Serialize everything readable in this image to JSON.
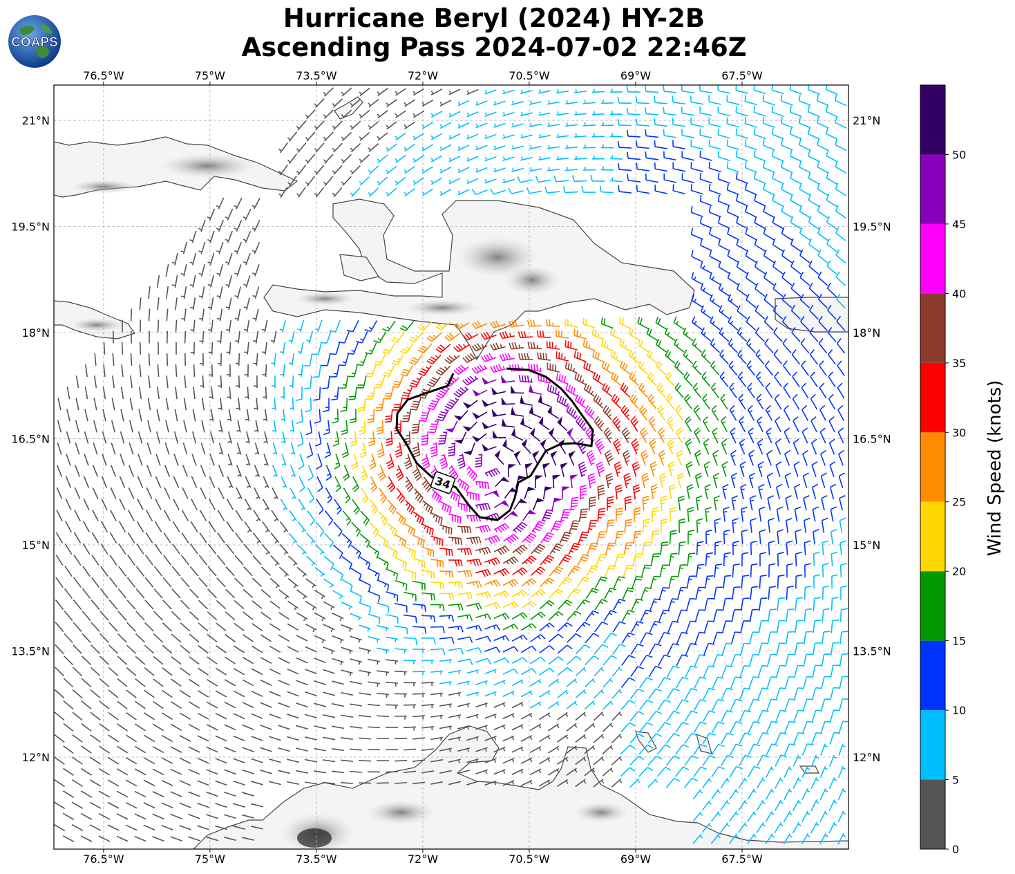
{
  "header": {
    "title_line1": "Hurricane Beryl (2024) HY-2B",
    "title_line2": "Ascending Pass 2024-07-02 22:46Z",
    "logo_text": "COAPS"
  },
  "map": {
    "lon_ticks": [
      "76.5°W",
      "75°W",
      "73.5°W",
      "72°W",
      "70.5°W",
      "69°W",
      "67.5°W"
    ],
    "lon_values": [
      -76.5,
      -75.0,
      -73.5,
      -72.0,
      -70.5,
      -69.0,
      -67.5
    ],
    "lat_ticks": [
      "21°N",
      "19.5°N",
      "18°N",
      "16.5°N",
      "15°N",
      "13.5°N",
      "12°N"
    ],
    "lat_values": [
      21.0,
      19.5,
      18.0,
      16.5,
      15.0,
      13.5,
      12.0
    ],
    "extent": {
      "lon_min": -77.2,
      "lon_max": -66.0,
      "lat_min": 10.7,
      "lat_max": 21.5
    },
    "contour_label": "34",
    "storm_center": {
      "lon": -71.05,
      "lat": 16.15
    },
    "land_color": "#ffffff",
    "ocean_color": "#ffffff"
  },
  "colorbar": {
    "title": "Wind Speed (knots)",
    "ticks": [
      "0",
      "5",
      "10",
      "15",
      "20",
      "25",
      "30",
      "35",
      "40",
      "45",
      "50"
    ],
    "tick_values": [
      0,
      5,
      10,
      15,
      20,
      25,
      30,
      35,
      40,
      45,
      50
    ],
    "max": 55,
    "colors": [
      "#555555",
      "#00bfff",
      "#0033ff",
      "#009900",
      "#ffd700",
      "#ff8c00",
      "#ff0000",
      "#8b3a2a",
      "#ff00ff",
      "#8800bb",
      "#330066"
    ]
  }
}
